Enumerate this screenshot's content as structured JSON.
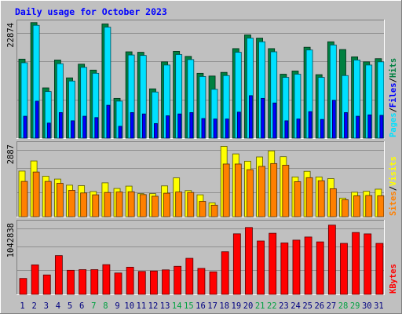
{
  "chart_data": {
    "type": "bar",
    "title": "Daily usage for October 2023",
    "categories": [
      "1",
      "2",
      "3",
      "4",
      "5",
      "6",
      "7",
      "8",
      "9",
      "10",
      "11",
      "12",
      "13",
      "14",
      "15",
      "16",
      "17",
      "18",
      "19",
      "20",
      "21",
      "22",
      "23",
      "24",
      "25",
      "26",
      "27",
      "28",
      "29",
      "30",
      "31"
    ],
    "weekend_days": [
      "7",
      "8",
      "14",
      "15",
      "21",
      "22",
      "28",
      "29"
    ],
    "panels": [
      {
        "name": "hits-files-pages",
        "ylabel_parts": [
          "Pages",
          "/",
          "Files",
          "/",
          "Hits"
        ],
        "scale_label": "22874",
        "ylim": [
          0,
          25600
        ],
        "grid": true,
        "series": [
          {
            "name": "Hits",
            "color": "#008040",
            "values": [
              17300,
              25300,
              11000,
              17100,
              13200,
              16200,
              14900,
              25000,
              8700,
              18900,
              18800,
              10800,
              16700,
              19000,
              17900,
              14200,
              13600,
              14400,
              19600,
              22600,
              21900,
              19600,
              14000,
              14700,
              19900,
              13900,
              21100,
              19400,
              17800,
              16700,
              17400
            ]
          },
          {
            "name": "Files",
            "color": "#00e0ff",
            "values": [
              16500,
              24700,
              10200,
              16300,
              12500,
              15500,
              14200,
              24300,
              8100,
              18200,
              18100,
              10100,
              16000,
              18300,
              17200,
              13500,
              10700,
              13700,
              18800,
              21900,
              21100,
              18900,
              13300,
              14000,
              19300,
              13300,
              20400,
              13700,
              17100,
              16000,
              16700
            ]
          },
          {
            "name": "Pages",
            "color": "#0000ff",
            "values": [
              4800,
              8100,
              3300,
              5600,
              3800,
              4800,
              4500,
              7200,
              2600,
              5600,
              5300,
              3200,
              4900,
              5300,
              5600,
              4300,
              4200,
              4200,
              5700,
              9300,
              8700,
              7700,
              3800,
              4200,
              5800,
              4100,
              8300,
              5600,
              4800,
              5100,
              5000
            ]
          }
        ]
      },
      {
        "name": "visits-sites",
        "ylabel_parts": [
          "Sites",
          "/",
          "Visits"
        ],
        "scale_label": "2887",
        "ylim": [
          0,
          3140
        ],
        "grid": true,
        "series": [
          {
            "name": "Visits",
            "color": "#ffff00",
            "values": [
              1940,
              2370,
              1720,
              1600,
              1340,
              1320,
              1070,
              1440,
              1200,
              1300,
              980,
              980,
              1310,
              1650,
              1110,
              930,
              590,
              2990,
              2670,
              2360,
              2540,
              2800,
              2550,
              1690,
              1930,
              1690,
              1620,
              790,
              1040,
              1080,
              1170
            ]
          },
          {
            "name": "Sites",
            "color": "#ff8000",
            "values": [
              1500,
              1900,
              1500,
              1420,
              1120,
              1010,
              930,
              1030,
              1050,
              1060,
              940,
              870,
              1000,
              1050,
              1030,
              650,
              490,
              2240,
              2240,
              2000,
              2140,
              2260,
              2190,
              1490,
              1660,
              1530,
              1190,
              720,
              890,
              900,
              890
            ]
          }
        ]
      },
      {
        "name": "kbytes",
        "ylabel_parts": [
          "KBytes"
        ],
        "scale_label": "1042838",
        "ylim": [
          0,
          1168000
        ],
        "grid": true,
        "series": [
          {
            "name": "KBytes",
            "color": "#ff0000",
            "values": [
              255000,
              472000,
              311000,
              620000,
              385000,
              396000,
              396000,
              476000,
              342000,
              435000,
              367000,
              374000,
              392000,
              449000,
              577000,
              416000,
              361000,
              682000,
              969000,
              1070000,
              854000,
              978000,
              823000,
              868000,
              918000,
              840000,
              1108000,
              816000,
              990000,
              968000,
              816000
            ]
          }
        ]
      }
    ]
  }
}
